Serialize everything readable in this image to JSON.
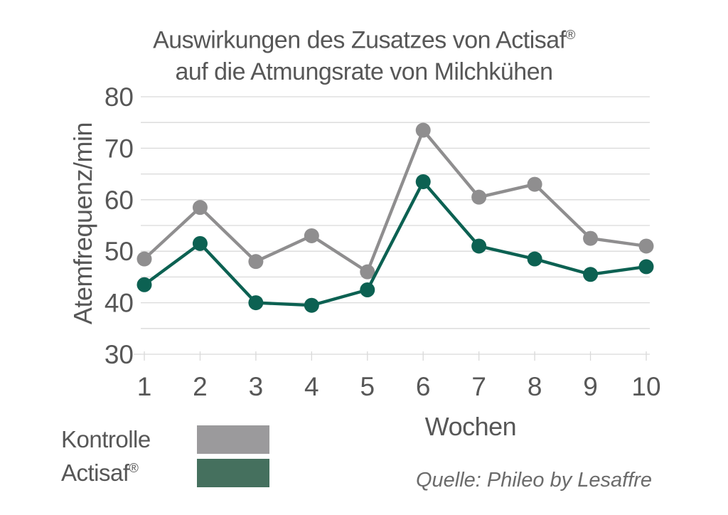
{
  "title": {
    "line1_text": "Auswirkungen des Zusatzes von Actisaf",
    "line1_sup": "®",
    "line2": "auf die Atmungsrate von Milchkühen"
  },
  "axes": {
    "y_title": "Atemfrequenz/min",
    "x_title": "Wochen"
  },
  "legend": {
    "items": [
      {
        "label": "Kontrolle",
        "sup": "",
        "swatch_color": "#9b9a9c"
      },
      {
        "label": "Actisaf",
        "sup": "®",
        "swatch_color": "#45705e"
      }
    ]
  },
  "source_note": "Quelle: Phileo by Lesaffre",
  "colors": {
    "text": "#575757",
    "tick_label": "#575757",
    "grid": "#d9d9d9",
    "background": "#ffffff",
    "kontrolle": "#8f8e8f",
    "actisaf": "#0c6152"
  },
  "chart_data": {
    "type": "line",
    "title": "Auswirkungen des Zusatzes von Actisaf® auf die Atmungsrate von Milchkühen",
    "x": [
      1,
      2,
      3,
      4,
      5,
      6,
      7,
      8,
      9,
      10
    ],
    "xlabel": "Wochen",
    "ylabel": "Atemfrequenz/min",
    "ylim": [
      30,
      80
    ],
    "ytick_labels": [
      30,
      40,
      50,
      60,
      70,
      80
    ],
    "grid_interval": 5,
    "grid": true,
    "marker": "circle",
    "legend_position": "bottom-left",
    "series": [
      {
        "name": "Kontrolle",
        "color": "#8f8e8f",
        "values": [
          48.5,
          58.5,
          48,
          53,
          46,
          73.5,
          60.5,
          63,
          52.5,
          51
        ]
      },
      {
        "name": "Actisaf®",
        "color": "#0c6152",
        "values": [
          43.5,
          51.5,
          40,
          39.5,
          42.5,
          63.5,
          51,
          48.5,
          45.5,
          47
        ]
      }
    ],
    "source": "Quelle: Phileo by Lesaffre"
  }
}
